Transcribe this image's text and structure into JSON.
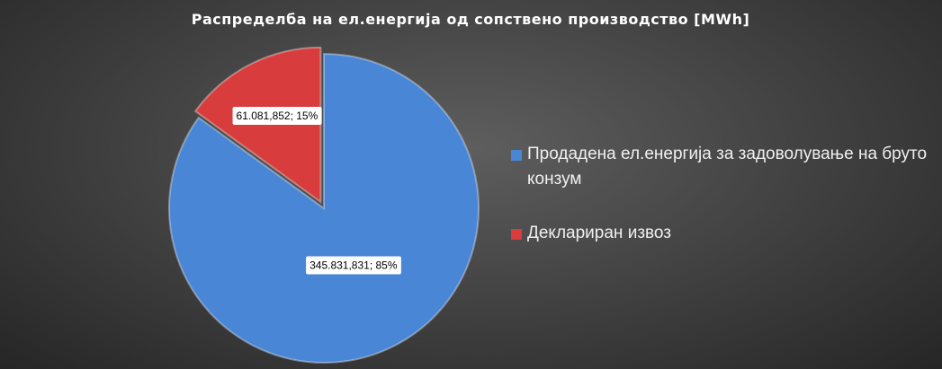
{
  "chart_data": {
    "type": "pie",
    "title": "Распределба  на  ел.енергија  од  сопствено  производство  [MWh]",
    "categories": [
      "Продадена ел.енергија за задоволување на бруто конзум",
      "Деклариран извоз"
    ],
    "values": [
      345831.831,
      61081.852
    ],
    "value_labels": [
      "345.831,831;  85%",
      "61.081,852;  15%"
    ],
    "colors": [
      "#4a86d6",
      "#d83c3c"
    ],
    "legend": "right"
  }
}
